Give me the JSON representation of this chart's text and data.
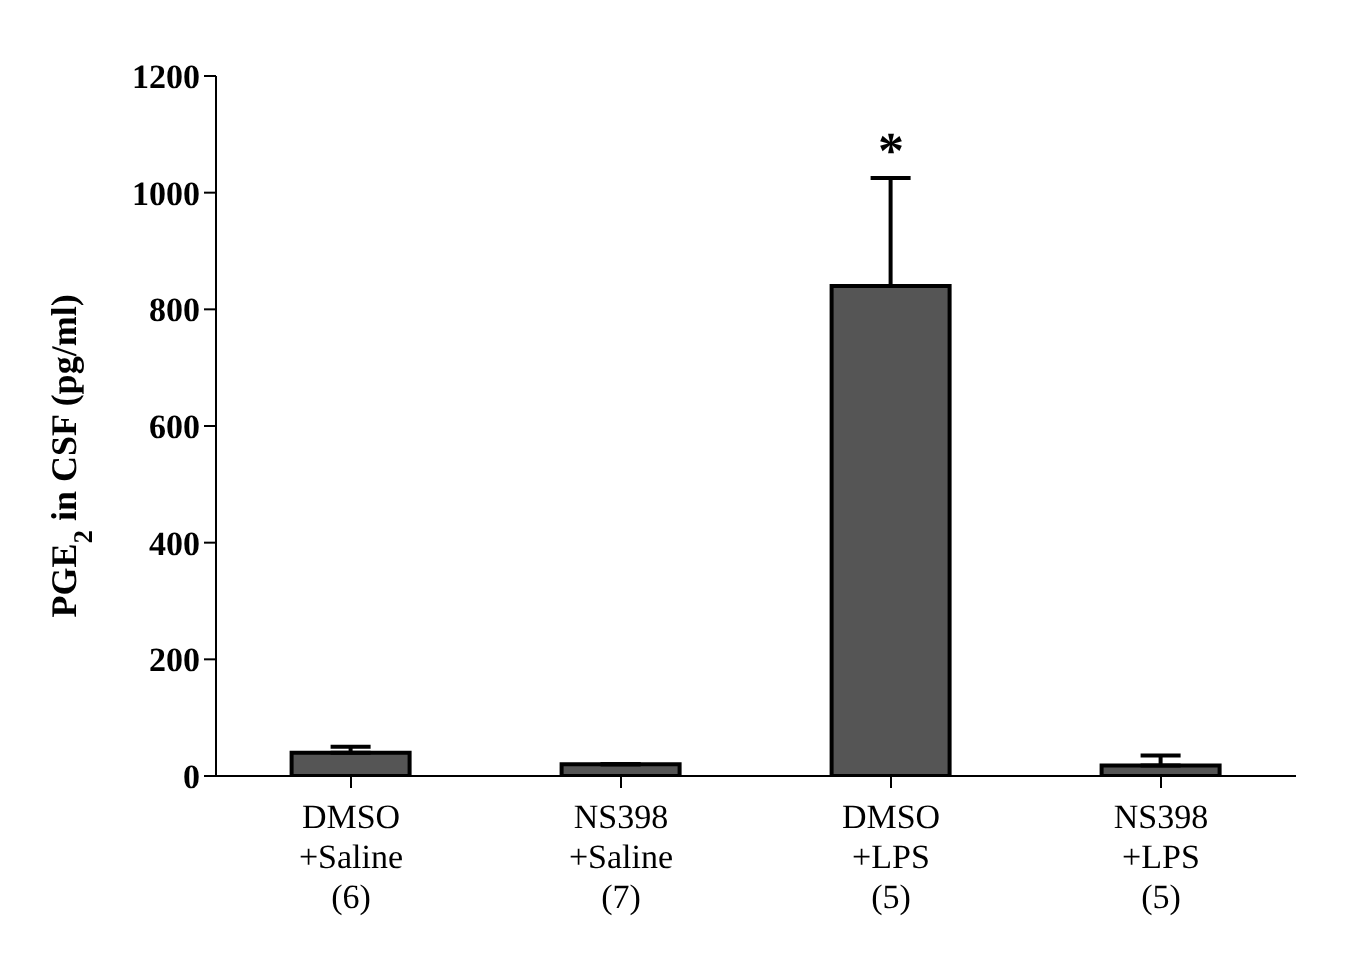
{
  "chart_data": {
    "type": "bar",
    "ylabel": "PGE$_{2}$ in CSF (pg/ml)",
    "categories": [
      "DMSO\n+Saline\n(6)",
      "NS398\n+Saline\n(7)",
      "DMSO\n+LPS\n(5)",
      "NS398\n+LPS\n(5)"
    ],
    "values": [
      40,
      20,
      840,
      18
    ],
    "errors": [
      [
        40,
        50
      ],
      null,
      [
        840,
        1025
      ],
      [
        18,
        35
      ]
    ],
    "color": "#555555",
    "ylim": [
      0,
      1200
    ],
    "yticks": [
      0,
      200,
      400,
      600,
      800,
      1000,
      1200
    ],
    "grid": false,
    "annotations": [
      {
        "text": "*",
        "x": "DMSO\n+LPS\n(5)",
        "y": 1025
      }
    ]
  }
}
